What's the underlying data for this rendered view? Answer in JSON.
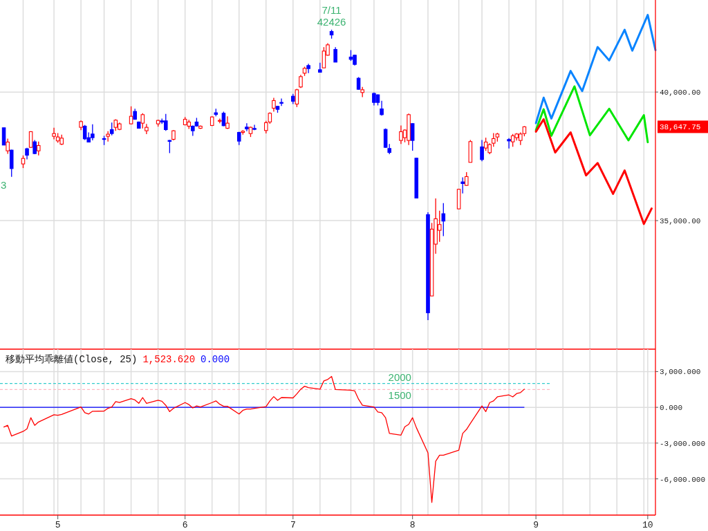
{
  "chart_data": [
    {
      "type": "candlestick",
      "x": [
        "--04-17",
        "--04-18",
        "--04-19",
        "--04-22",
        "--04-23",
        "--04-24",
        "--04-25",
        "--04-26",
        "--04-30",
        "--05-01",
        "--05-02",
        "--05-07",
        "--05-08",
        "--05-09",
        "--05-10",
        "--05-13",
        "--05-14",
        "--05-15",
        "--05-16",
        "--05-17",
        "--05-20",
        "--05-21",
        "--05-22",
        "--05-23",
        "--05-24",
        "--05-27",
        "--05-28",
        "--05-29",
        "--05-30",
        "--05-31",
        "--06-03",
        "--06-04",
        "--06-05",
        "--06-06",
        "--06-07",
        "--06-10",
        "--06-11",
        "--06-12",
        "--06-13",
        "--06-14",
        "--06-17",
        "--06-18",
        "--06-19",
        "--06-20",
        "--06-21",
        "--06-24",
        "--06-25",
        "--06-26",
        "--06-27",
        "--06-28",
        "--07-01",
        "--07-02",
        "--07-03",
        "--07-04",
        "--07-05",
        "--07-08",
        "--07-09",
        "--07-10",
        "--07-11",
        "--07-12",
        "--07-16",
        "--07-17",
        "--07-18",
        "--07-19",
        "--07-22",
        "--07-23",
        "--07-24",
        "--07-25",
        "--07-26",
        "--07-29",
        "--07-30",
        "--07-31",
        "--08-01",
        "--08-02",
        "--08-05",
        "--08-06",
        "--08-07",
        "--08-08",
        "--08-09",
        "--08-13",
        "--08-14",
        "--08-15",
        "--08-16",
        "--08-19",
        "--08-20",
        "--08-21",
        "--08-22",
        "--08-23",
        "--08-26",
        "--08-27",
        "--08-28",
        "--08-29",
        "--08-30"
      ],
      "ohlc": [
        [
          38610,
          38610,
          37938,
          37938
        ],
        [
          37714,
          38189,
          37598,
          38055
        ],
        [
          37741,
          37759,
          36702,
          37024
        ],
        [
          37204,
          37535,
          37042,
          37419
        ],
        [
          37795,
          37831,
          37383,
          37544
        ],
        [
          37849,
          38476,
          37831,
          38458
        ],
        [
          38064,
          38136,
          37580,
          37607
        ],
        [
          37714,
          38073,
          37535,
          37920
        ],
        [
          38279,
          38610,
          38162,
          38386
        ],
        [
          38100,
          38404,
          38028,
          38252
        ],
        [
          37974,
          38342,
          37938,
          38207
        ],
        [
          38628,
          38897,
          38521,
          38852
        ],
        [
          38673,
          38718,
          38136,
          38180
        ],
        [
          38225,
          38431,
          38046,
          38055
        ],
        [
          38368,
          38745,
          38118,
          38225
        ],
        [
          38189,
          38297,
          37938,
          38171
        ],
        [
          38279,
          38476,
          38073,
          38360
        ],
        [
          38539,
          38816,
          38315,
          38386
        ],
        [
          38628,
          38942,
          38494,
          38906
        ],
        [
          38548,
          38816,
          38521,
          38763
        ],
        [
          38763,
          39444,
          38745,
          39058
        ],
        [
          39247,
          39354,
          38924,
          38942
        ],
        [
          38834,
          38852,
          38584,
          38592
        ],
        [
          38790,
          39175,
          38584,
          39121
        ],
        [
          38494,
          38763,
          38360,
          38628
        ],
        [
          38763,
          38924,
          38655,
          38897
        ],
        [
          38879,
          38969,
          38763,
          38834
        ],
        [
          38879,
          39148,
          38494,
          38539
        ],
        [
          38118,
          38136,
          37625,
          38082
        ],
        [
          38162,
          38521,
          38118,
          38494
        ],
        [
          38727,
          39032,
          38709,
          38942
        ],
        [
          38673,
          38924,
          38566,
          38834
        ],
        [
          38673,
          38700,
          38297,
          38494
        ],
        [
          38834,
          38996,
          38655,
          38682
        ],
        [
          38592,
          38700,
          38566,
          38673
        ],
        [
          38700,
          39058,
          38682,
          39032
        ],
        [
          39193,
          39354,
          39058,
          39130
        ],
        [
          38870,
          38969,
          38790,
          38897
        ],
        [
          39175,
          39238,
          38673,
          38691
        ],
        [
          38592,
          39058,
          38566,
          38790
        ],
        [
          38431,
          38449,
          37938,
          38091
        ],
        [
          38431,
          38521,
          38342,
          38476
        ],
        [
          38637,
          38790,
          38476,
          38566
        ],
        [
          38386,
          38655,
          38252,
          38628
        ],
        [
          38584,
          38727,
          38521,
          38548
        ],
        [
          38503,
          38879,
          38387,
          38808
        ],
        [
          38835,
          39211,
          38763,
          39175
        ],
        [
          39372,
          39775,
          39238,
          39668
        ],
        [
          39444,
          39462,
          39193,
          39327
        ],
        [
          39596,
          39749,
          39462,
          39578
        ],
        [
          39838,
          39928,
          39533,
          39641
        ],
        [
          39533,
          40125,
          39417,
          40089
        ],
        [
          40197,
          40671,
          40161,
          40600
        ],
        [
          40734,
          40985,
          40627,
          40922
        ],
        [
          41030,
          41101,
          40734,
          40913
        ],
        [
          40868,
          41137,
          40770,
          40770
        ],
        [
          40940,
          41747,
          40940,
          41594
        ],
        [
          41433,
          41899,
          41415,
          41836
        ],
        [
          42356,
          42426,
          42078,
          42221
        ],
        [
          41657,
          41747,
          41164,
          41164
        ],
        [
          41361,
          41630,
          41209,
          41272
        ],
        [
          41433,
          41451,
          41030,
          41075
        ],
        [
          40537,
          40582,
          40089,
          40107
        ],
        [
          39982,
          40197,
          39802,
          40089
        ],
        [
          39946,
          39982,
          39480,
          39596
        ],
        [
          39892,
          39910,
          39480,
          39596
        ],
        [
          39345,
          39659,
          39085,
          39121
        ],
        [
          38548,
          38584,
          37831,
          37849
        ],
        [
          37804,
          37983,
          37580,
          37652
        ],
        [
          38118,
          38700,
          37983,
          38458
        ],
        [
          38225,
          38548,
          38046,
          38521
        ],
        [
          38118,
          39166,
          37939,
          39121
        ],
        [
          38772,
          38790,
          37715,
          38118
        ],
        [
          37427,
          37445,
          35860,
          35877
        ],
        [
          35232,
          35322,
          31129,
          31415
        ],
        [
          32069,
          34910,
          32069,
          34668
        ],
        [
          34085,
          35860,
          33709,
          35071
        ],
        [
          34623,
          35385,
          34175,
          34847
        ],
        [
          35268,
          35680,
          34399,
          34981
        ],
        [
          35456,
          36236,
          35447,
          36218
        ],
        [
          36505,
          36684,
          36057,
          36442
        ],
        [
          36370,
          36881,
          36352,
          36711
        ],
        [
          37266,
          38135,
          37266,
          38073
        ],
        [
          37867,
          38135,
          37311,
          37374
        ],
        [
          37822,
          38225,
          37714,
          38055
        ],
        [
          37643,
          38010,
          37580,
          37956
        ],
        [
          38010,
          38404,
          37875,
          38189
        ],
        [
          38252,
          38413,
          38073,
          38368
        ],
        [
          38153,
          38207,
          37804,
          38099
        ],
        [
          38064,
          38368,
          37875,
          38297
        ],
        [
          38225,
          38404,
          38117,
          38368
        ],
        [
          38117,
          38431,
          37938,
          38368
        ],
        [
          38386,
          38673,
          38279,
          38647.75
        ]
      ],
      "colors": [
        "#0000ff",
        "#ff0000",
        "#0000ff",
        "#ff0000",
        "#0000ff",
        "#ff0000",
        "#0000ff",
        "#ff0000",
        "#ff0000",
        "#ff0000",
        "#ff0000",
        "#ff0000",
        "#0000ff",
        "#0000ff",
        "#0000ff",
        "#0000ff",
        "#ff0000",
        "#0000ff",
        "#ff0000",
        "#ff0000",
        "#ff0000",
        "#0000ff",
        "#0000ff",
        "#ff0000",
        "#ff0000",
        "#ff0000",
        "#0000ff",
        "#0000ff",
        "#0000ff",
        "#ff0000",
        "#ff0000",
        "#ff0000",
        "#0000ff",
        "#0000ff",
        "#ff0000",
        "#ff0000",
        "#0000ff",
        "#ff0000",
        "#0000ff",
        "#ff0000",
        "#0000ff",
        "#ff0000",
        "#0000ff",
        "#ff0000",
        "#0000ff",
        "#ff0000",
        "#ff0000",
        "#ff0000",
        "#0000ff",
        "#0000ff",
        "#0000ff",
        "#ff0000",
        "#ff0000",
        "#ff0000",
        "#0000ff",
        "#0000ff",
        "#ff0000",
        "#ff0000",
        "#0000ff",
        "#0000ff",
        "#0000ff",
        "#0000ff",
        "#0000ff",
        "#ff0000",
        "#0000ff",
        "#0000ff",
        "#0000ff",
        "#0000ff",
        "#0000ff",
        "#ff0000",
        "#ff0000",
        "#ff0000",
        "#0000ff",
        "#0000ff",
        "#0000ff",
        "#ff0000",
        "#ff0000",
        "#ff0000",
        "#0000ff",
        "#ff0000",
        "#0000ff",
        "#ff0000",
        "#ff0000",
        "#0000ff",
        "#ff0000",
        "#ff0000",
        "#ff0000",
        "#ff0000",
        "#0000ff",
        "#ff0000",
        "#ff0000",
        "#ff0000",
        "#ff0000"
      ],
      "series": [
        {
          "type": "line",
          "color": "#0a84ff",
          "x": [
            "--09-02",
            "--09-04",
            "--09-06",
            "--09-11",
            "--09-14",
            "--09-18",
            "--09-21",
            "--09-25",
            "--09-27",
            "--10-01",
            "--10-03"
          ],
          "values": [
            38790,
            39780,
            38970,
            40820,
            40040,
            41750,
            41230,
            42420,
            41610,
            43000,
            41630
          ]
        },
        {
          "type": "line",
          "color": "#00e600",
          "x": [
            "--09-02",
            "--09-04",
            "--09-06",
            "--09-12",
            "--09-16",
            "--09-21",
            "--09-26",
            "--09-30",
            "--10-01"
          ],
          "values": [
            38520,
            39330,
            38300,
            40220,
            38320,
            39350,
            38120,
            39100,
            38050
          ]
        },
        {
          "type": "line",
          "color": "#ff0000",
          "x": [
            "--09-02",
            "--09-04",
            "--09-07",
            "--09-11",
            "--09-15",
            "--09-18",
            "--09-22",
            "--09-25",
            "--09-30",
            "--10-02"
          ],
          "values": [
            38460,
            38940,
            37650,
            38430,
            36760,
            37240,
            36040,
            36950,
            34870,
            35470
          ]
        }
      ],
      "xlim": [
        "--04-16",
        "--10-03"
      ],
      "ylim": [
        30000,
        43580
      ],
      "yticks": [
        {
          "value": 35000,
          "label": "35,000.00"
        },
        {
          "value": 40000,
          "label": "40,000.00"
        }
      ],
      "xticks": [
        {
          "value": "--04-22",
          "label": null
        },
        {
          "value": "--04-30",
          "label": null
        },
        {
          "value": "--05-07",
          "label": null
        },
        {
          "value": "--05-13",
          "label": null
        },
        {
          "value": "--05-20",
          "label": null
        },
        {
          "value": "--05-27",
          "label": null
        },
        {
          "value": "--06-03",
          "label": null
        },
        {
          "value": "--06-10",
          "label": null
        },
        {
          "value": "--06-17",
          "label": null
        },
        {
          "value": "--06-24",
          "label": null
        },
        {
          "value": "--07-01",
          "label": null
        },
        {
          "value": "--07-08",
          "label": null
        },
        {
          "value": "--07-16",
          "label": null
        },
        {
          "value": "--07-22",
          "label": null
        },
        {
          "value": "--07-29",
          "label": null
        },
        {
          "value": "--08-05",
          "label": null
        },
        {
          "value": "--08-13",
          "label": null
        },
        {
          "value": "--08-19",
          "label": null
        },
        {
          "value": "--08-26",
          "label": null
        },
        {
          "value": "--09-02",
          "label": null
        },
        {
          "value": "--09-09",
          "label": null
        },
        {
          "value": "--09-16",
          "label": null
        },
        {
          "value": "--09-23",
          "label": null
        },
        {
          "value": "--09-30",
          "label": null
        }
      ],
      "grid": true,
      "tick_labels": "y",
      "annotations": [
        {
          "text": "7/11",
          "x": "--07-11",
          "y": 42426
        },
        {
          "text": "42426",
          "x": "--07-11",
          "y": 42426
        },
        "3",
        "38,647.75"
      ]
    },
    {
      "type": "line",
      "title": "移動平均乖離値(Close, 25)",
      "color": "#ff0000",
      "x": [
        "--04-17",
        "--04-18",
        "--04-19",
        "--04-22",
        "--04-23",
        "--04-24",
        "--04-25",
        "--04-26",
        "--04-30",
        "--05-01",
        "--05-02",
        "--05-07",
        "--05-08",
        "--05-09",
        "--05-10",
        "--05-13",
        "--05-14",
        "--05-15",
        "--05-16",
        "--05-17",
        "--05-20",
        "--05-21",
        "--05-22",
        "--05-23",
        "--05-24",
        "--05-27",
        "--05-28",
        "--05-29",
        "--05-30",
        "--05-31",
        "--06-03",
        "--06-04",
        "--06-05",
        "--06-06",
        "--06-07",
        "--06-10",
        "--06-11",
        "--06-12",
        "--06-13",
        "--06-14",
        "--06-17",
        "--06-18",
        "--06-19",
        "--06-20",
        "--06-21",
        "--06-24",
        "--06-25",
        "--06-26",
        "--06-27",
        "--06-28",
        "--07-01",
        "--07-02",
        "--07-03",
        "--07-04",
        "--07-05",
        "--07-08",
        "--07-09",
        "--07-10",
        "--07-11",
        "--07-12",
        "--07-16",
        "--07-17",
        "--07-18",
        "--07-19",
        "--07-22",
        "--07-23",
        "--07-24",
        "--07-25",
        "--07-26",
        "--07-29",
        "--07-30",
        "--07-31",
        "--08-01",
        "--08-02",
        "--08-05",
        "--08-06",
        "--08-07",
        "--08-08",
        "--08-09",
        "--08-13",
        "--08-14",
        "--08-15",
        "--08-16",
        "--08-19",
        "--08-20",
        "--08-21",
        "--08-22",
        "--08-23",
        "--08-26",
        "--08-27",
        "--08-28",
        "--08-29",
        "--08-30"
      ],
      "values": [
        -1650,
        -1510,
        -2410,
        -2020,
        -1800,
        -870,
        -1510,
        -1230,
        -620,
        -670,
        -590,
        30,
        -450,
        -560,
        -330,
        -310,
        -80,
        30,
        480,
        400,
        730,
        620,
        340,
        820,
        340,
        590,
        510,
        170,
        -360,
        -80,
        400,
        230,
        -50,
        120,
        30,
        400,
        540,
        260,
        90,
        90,
        -560,
        -250,
        -140,
        -140,
        -80,
        60,
        540,
        900,
        590,
        820,
        790,
        1130,
        1520,
        1770,
        1660,
        1520,
        2220,
        2340,
        2590,
        1490,
        1440,
        1380,
        680,
        170,
        30,
        -390,
        -450,
        -870,
        -2190,
        -2330,
        -1630,
        -1430,
        -870,
        -1710,
        -3820,
        -7980,
        -4520,
        -4020,
        -4020,
        -3590,
        -2190,
        -1850,
        -1350,
        120,
        -360,
        400,
        540,
        880,
        1040,
        880,
        1160,
        1240,
        1523.62
      ],
      "xlim": [
        "--04-16",
        "--10-03"
      ],
      "ylim": [
        -9040,
        4880
      ],
      "yticks": [
        {
          "value": -6000,
          "label": "-6,000.000"
        },
        {
          "value": -3000,
          "label": "-3,000.000"
        },
        {
          "value": 0,
          "label": "0.000"
        },
        {
          "value": 3000,
          "label": "3,000.000"
        }
      ],
      "xticks": [
        {
          "value": "--04-22",
          "label": null
        },
        {
          "value": "--04-30",
          "label": null
        },
        {
          "value": "--05-01",
          "label": "5"
        },
        {
          "value": "--05-07",
          "label": null
        },
        {
          "value": "--05-13",
          "label": null
        },
        {
          "value": "--05-20",
          "label": null
        },
        {
          "value": "--05-27",
          "label": null
        },
        {
          "value": "--06-03",
          "label": "6"
        },
        {
          "value": "--06-10",
          "label": null
        },
        {
          "value": "--06-17",
          "label": null
        },
        {
          "value": "--06-24",
          "label": null
        },
        {
          "value": "--07-01",
          "label": "7"
        },
        {
          "value": "--07-08",
          "label": null
        },
        {
          "value": "--07-16",
          "label": null
        },
        {
          "value": "--07-22",
          "label": null
        },
        {
          "value": "--07-29",
          "label": null
        },
        {
          "value": "--08-01",
          "label": "8"
        },
        {
          "value": "--08-05",
          "label": null
        },
        {
          "value": "--08-13",
          "label": null
        },
        {
          "value": "--08-19",
          "label": null
        },
        {
          "value": "--08-26",
          "label": null
        },
        {
          "value": "--09-02",
          "label": "9"
        },
        {
          "value": "--09-09",
          "label": null
        },
        {
          "value": "--09-16",
          "label": null
        },
        {
          "value": "--09-23",
          "label": null
        },
        {
          "value": "--09-30",
          "label": null
        },
        {
          "value": "--10-01",
          "label": "10"
        }
      ],
      "grid": true,
      "ref_lines": [
        {
          "axis": "y",
          "value": 0,
          "color": "#0000ff",
          "line_style": "solid"
        },
        {
          "axis": "y",
          "value": 2000,
          "label": "2000",
          "color": "#33cccc",
          "line_style": "dashed"
        },
        {
          "axis": "y",
          "value": 1500,
          "label": "1500",
          "color": "#ffb6c1",
          "line_style": "dashed"
        }
      ],
      "annotations": [
        "1,523.620",
        "0.000"
      ]
    }
  ]
}
